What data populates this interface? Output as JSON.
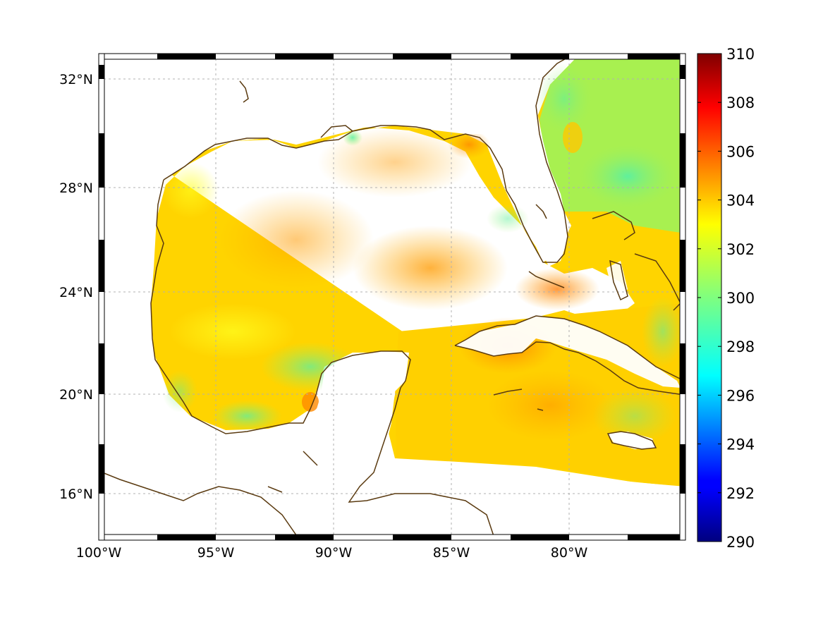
{
  "map": {
    "type": "heatmap",
    "variable_note": "",
    "lon_range": [
      -100,
      -75
    ],
    "lat_range": [
      14.6,
      32.9
    ],
    "x_ticks": [
      {
        "value": -100,
        "label": "100°W"
      },
      {
        "value": -95,
        "label": "95°W"
      },
      {
        "value": -90,
        "label": "90°W"
      },
      {
        "value": -85,
        "label": "85°W"
      },
      {
        "value": -80,
        "label": "80°W"
      }
    ],
    "y_ticks": [
      {
        "value": 32,
        "label": "32°N"
      },
      {
        "value": 28,
        "label": "28°N"
      },
      {
        "value": 24,
        "label": "24°N"
      },
      {
        "value": 20,
        "label": "20°N"
      },
      {
        "value": 16,
        "label": "16°N"
      }
    ],
    "grid": true,
    "coastline_color": "#5a3a10",
    "colormap": "jet",
    "colorbar_location": "right"
  },
  "chart_data": {
    "type": "heatmap",
    "colorbar": {
      "min": 290,
      "max": 310,
      "ticks": [
        {
          "value": 310,
          "label": "310"
        },
        {
          "value": 308,
          "label": "308"
        },
        {
          "value": 306,
          "label": "306"
        },
        {
          "value": 304,
          "label": "304"
        },
        {
          "value": 302,
          "label": "302"
        },
        {
          "value": 300,
          "label": "300"
        },
        {
          "value": 298,
          "label": "298"
        },
        {
          "value": 296,
          "label": "296"
        },
        {
          "value": 294,
          "label": "294"
        },
        {
          "value": 292,
          "label": "292"
        },
        {
          "value": 290,
          "label": "290"
        }
      ]
    },
    "typical_values": {
      "central_gulf": 303.5,
      "southeast_gulf_max": 304.5,
      "south_of_cuba_max": 305,
      "atlantic_off_florida": 300,
      "yucatan_shelf": 300.5
    }
  }
}
